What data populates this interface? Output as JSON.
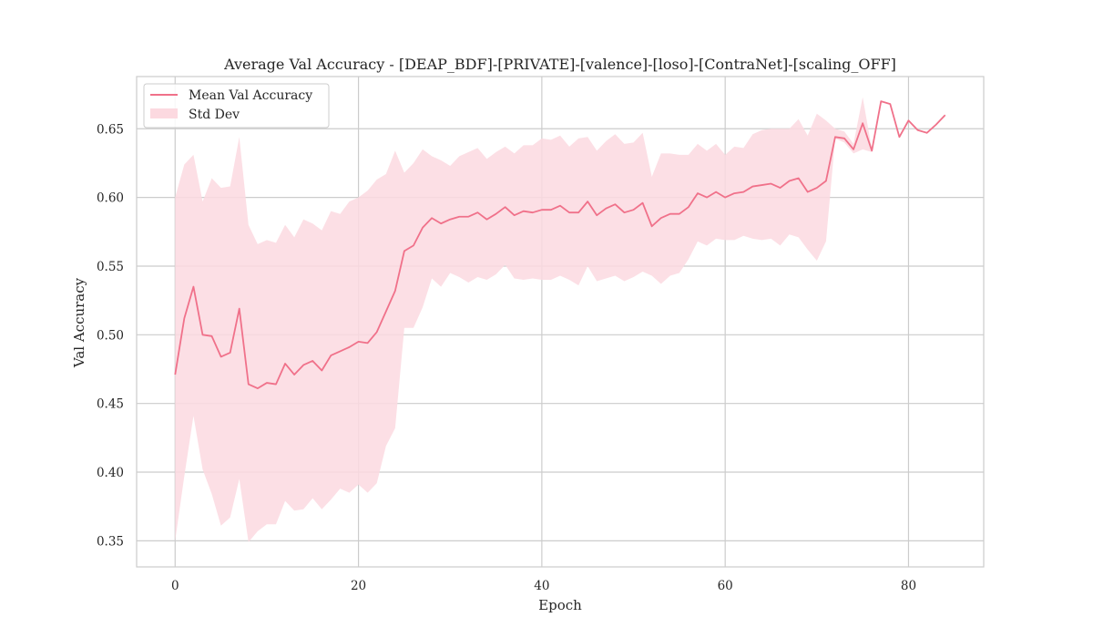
{
  "chart_data": {
    "type": "line",
    "title": "Average Val Accuracy - [DEAP_BDF]-[PRIVATE]-[valence]-[loso]-[ContraNet]-[scaling_OFF]",
    "xlabel": "Epoch",
    "ylabel": "Val Accuracy",
    "xlim": [
      -4.2,
      88.2
    ],
    "ylim": [
      0.331,
      0.688
    ],
    "xticks": [
      0,
      20,
      40,
      60,
      80
    ],
    "yticks": [
      0.35,
      0.4,
      0.45,
      0.5,
      0.55,
      0.6,
      0.65
    ],
    "ytick_labels": [
      "0.35",
      "0.40",
      "0.45",
      "0.50",
      "0.55",
      "0.60",
      "0.65"
    ],
    "grid": true,
    "legend_position": "top-left",
    "colors": {
      "line": "#f0718a",
      "band": "#fcd9e0",
      "grid": "#cccccc"
    },
    "series": [
      {
        "name": "Mean Val Accuracy",
        "x": [
          0,
          1,
          2,
          3,
          4,
          5,
          6,
          7,
          8,
          9,
          10,
          11,
          12,
          13,
          14,
          15,
          16,
          17,
          18,
          19,
          20,
          21,
          22,
          23,
          24,
          25,
          26,
          27,
          28,
          29,
          30,
          31,
          32,
          33,
          34,
          35,
          36,
          37,
          38,
          39,
          40,
          41,
          42,
          43,
          44,
          45,
          46,
          47,
          48,
          49,
          50,
          51,
          52,
          53,
          54,
          55,
          56,
          57,
          58,
          59,
          60,
          61,
          62,
          63,
          64,
          65,
          66,
          67,
          68,
          69,
          70,
          71,
          72,
          73,
          74,
          75,
          76,
          77,
          78,
          79,
          80,
          81,
          82,
          83,
          84
        ],
        "values": [
          0.471,
          0.512,
          0.535,
          0.5,
          0.499,
          0.484,
          0.487,
          0.519,
          0.464,
          0.461,
          0.465,
          0.464,
          0.479,
          0.471,
          0.478,
          0.481,
          0.474,
          0.485,
          0.488,
          0.491,
          0.495,
          0.494,
          0.502,
          0.517,
          0.532,
          0.561,
          0.565,
          0.578,
          0.585,
          0.581,
          0.584,
          0.586,
          0.586,
          0.589,
          0.584,
          0.588,
          0.593,
          0.587,
          0.59,
          0.589,
          0.591,
          0.591,
          0.594,
          0.589,
          0.589,
          0.597,
          0.587,
          0.592,
          0.595,
          0.589,
          0.591,
          0.596,
          0.579,
          0.585,
          0.588,
          0.588,
          0.593,
          0.603,
          0.6,
          0.604,
          0.6,
          0.603,
          0.604,
          0.608,
          0.609,
          0.61,
          0.607,
          0.612,
          0.614,
          0.604,
          0.607,
          0.612,
          0.644,
          0.643,
          0.635,
          0.654,
          0.634,
          0.67,
          0.668,
          0.644,
          0.656,
          0.649,
          0.647,
          0.653,
          0.66
        ]
      },
      {
        "name": "Std Dev",
        "x": [
          0,
          1,
          2,
          3,
          4,
          5,
          6,
          7,
          8,
          9,
          10,
          11,
          12,
          13,
          14,
          15,
          16,
          17,
          18,
          19,
          20,
          21,
          22,
          23,
          24,
          25,
          26,
          27,
          28,
          29,
          30,
          31,
          32,
          33,
          34,
          35,
          36,
          37,
          38,
          39,
          40,
          41,
          42,
          43,
          44,
          45,
          46,
          47,
          48,
          49,
          50,
          51,
          52,
          53,
          54,
          55,
          56,
          57,
          58,
          59,
          60,
          61,
          62,
          63,
          64,
          65,
          66,
          67,
          68,
          69,
          70,
          71,
          72,
          73,
          74,
          75,
          76,
          77,
          78,
          79,
          80,
          81,
          82,
          83,
          84
        ],
        "lower": [
          0.35,
          0.397,
          0.441,
          0.402,
          0.384,
          0.361,
          0.367,
          0.395,
          0.349,
          0.357,
          0.362,
          0.362,
          0.379,
          0.372,
          0.373,
          0.381,
          0.373,
          0.38,
          0.388,
          0.385,
          0.391,
          0.385,
          0.392,
          0.419,
          0.432,
          0.505,
          0.505,
          0.52,
          0.541,
          0.535,
          0.545,
          0.542,
          0.538,
          0.542,
          0.54,
          0.544,
          0.551,
          0.541,
          0.54,
          0.541,
          0.54,
          0.54,
          0.543,
          0.54,
          0.536,
          0.55,
          0.539,
          0.541,
          0.543,
          0.539,
          0.542,
          0.546,
          0.543,
          0.537,
          0.543,
          0.545,
          0.555,
          0.568,
          0.565,
          0.57,
          0.569,
          0.569,
          0.572,
          0.57,
          0.569,
          0.57,
          0.565,
          0.573,
          0.571,
          0.562,
          0.554,
          0.568,
          0.643,
          0.64,
          0.632,
          0.635,
          0.633,
          0.67,
          0.668,
          0.644,
          0.656,
          0.649,
          0.647,
          0.653,
          0.66
        ],
        "upper": [
          0.6,
          0.624,
          0.631,
          0.597,
          0.614,
          0.607,
          0.608,
          0.644,
          0.58,
          0.566,
          0.569,
          0.567,
          0.58,
          0.571,
          0.584,
          0.581,
          0.576,
          0.59,
          0.588,
          0.597,
          0.6,
          0.605,
          0.613,
          0.617,
          0.634,
          0.618,
          0.625,
          0.635,
          0.63,
          0.627,
          0.623,
          0.63,
          0.633,
          0.636,
          0.628,
          0.633,
          0.637,
          0.632,
          0.638,
          0.638,
          0.643,
          0.642,
          0.645,
          0.637,
          0.643,
          0.644,
          0.634,
          0.641,
          0.646,
          0.639,
          0.64,
          0.647,
          0.615,
          0.632,
          0.632,
          0.631,
          0.631,
          0.639,
          0.634,
          0.639,
          0.631,
          0.637,
          0.636,
          0.646,
          0.649,
          0.65,
          0.65,
          0.65,
          0.657,
          0.645,
          0.661,
          0.656,
          0.65,
          0.648,
          0.639,
          0.673,
          0.635,
          0.67,
          0.668,
          0.644,
          0.656,
          0.649,
          0.647,
          0.653,
          0.66
        ]
      }
    ]
  }
}
